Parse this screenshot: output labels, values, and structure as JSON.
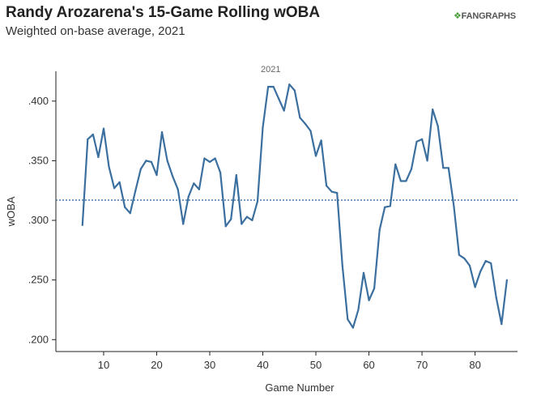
{
  "header": {
    "title": "Randy Arozarena's 15-Game Rolling wOBA",
    "subtitle": "Weighted on-base average, 2021",
    "brand": "FANGRAPHS"
  },
  "colors": {
    "line": "#3b6f9f",
    "reference": "#3b6f9f",
    "axis": "#222222",
    "text": "#333333",
    "brand_accent": "#4a9e3a"
  },
  "chart_data": {
    "type": "line",
    "title": "Randy Arozarena's 15-Game Rolling wOBA",
    "subtitle": "Weighted on-base average, 2021",
    "xlabel": "Game Number",
    "ylabel": "wOBA",
    "xlim": [
      1,
      88
    ],
    "ylim": [
      0.19,
      0.425
    ],
    "x_ticks": [
      10,
      20,
      30,
      40,
      50,
      60,
      70,
      80
    ],
    "x_tick_labels": [
      "10",
      "20",
      "30",
      "40",
      "50",
      "60",
      "70",
      "80"
    ],
    "y_ticks": [
      0.2,
      0.25,
      0.3,
      0.35,
      0.4
    ],
    "y_tick_labels": [
      ".200",
      ".250",
      ".300",
      ".350",
      ".400"
    ],
    "grid": false,
    "reference_line": {
      "y": 0.317,
      "style": "dotted"
    },
    "annotations": [
      {
        "text": "2021",
        "x": 45,
        "y": 0.414
      }
    ],
    "series": [
      {
        "x": [
          6,
          7,
          8,
          9,
          10,
          11,
          12,
          13,
          14,
          15,
          16,
          17,
          18,
          19,
          20,
          21,
          22,
          23,
          24,
          25,
          26,
          27,
          28,
          29,
          30,
          31,
          32,
          33,
          34,
          35,
          36,
          37,
          38,
          39,
          40,
          41,
          42,
          43,
          44,
          45,
          46,
          47,
          48,
          49,
          50,
          51,
          52,
          53,
          54,
          55,
          56,
          57,
          58,
          59,
          60,
          61,
          62,
          63,
          64,
          65,
          66,
          67,
          68,
          69,
          70,
          71,
          72,
          73,
          74,
          75,
          76,
          77,
          78,
          79,
          80,
          81,
          82,
          83,
          84,
          85,
          86
        ],
        "values": [
          0.296,
          0.368,
          0.372,
          0.353,
          0.377,
          0.345,
          0.327,
          0.332,
          0.311,
          0.306,
          0.325,
          0.343,
          0.35,
          0.349,
          0.338,
          0.374,
          0.35,
          0.337,
          0.326,
          0.297,
          0.32,
          0.331,
          0.326,
          0.352,
          0.349,
          0.352,
          0.34,
          0.295,
          0.301,
          0.338,
          0.297,
          0.303,
          0.3,
          0.316,
          0.378,
          0.412,
          0.412,
          0.402,
          0.392,
          0.414,
          0.409,
          0.386,
          0.381,
          0.375,
          0.354,
          0.367,
          0.329,
          0.324,
          0.323,
          0.262,
          0.217,
          0.21,
          0.225,
          0.256,
          0.233,
          0.243,
          0.292,
          0.311,
          0.312,
          0.347,
          0.333,
          0.333,
          0.343,
          0.366,
          0.368,
          0.35,
          0.393,
          0.379,
          0.344,
          0.344,
          0.312,
          0.271,
          0.268,
          0.262,
          0.244,
          0.257,
          0.266,
          0.264,
          0.235,
          0.213,
          0.25
        ]
      }
    ]
  }
}
